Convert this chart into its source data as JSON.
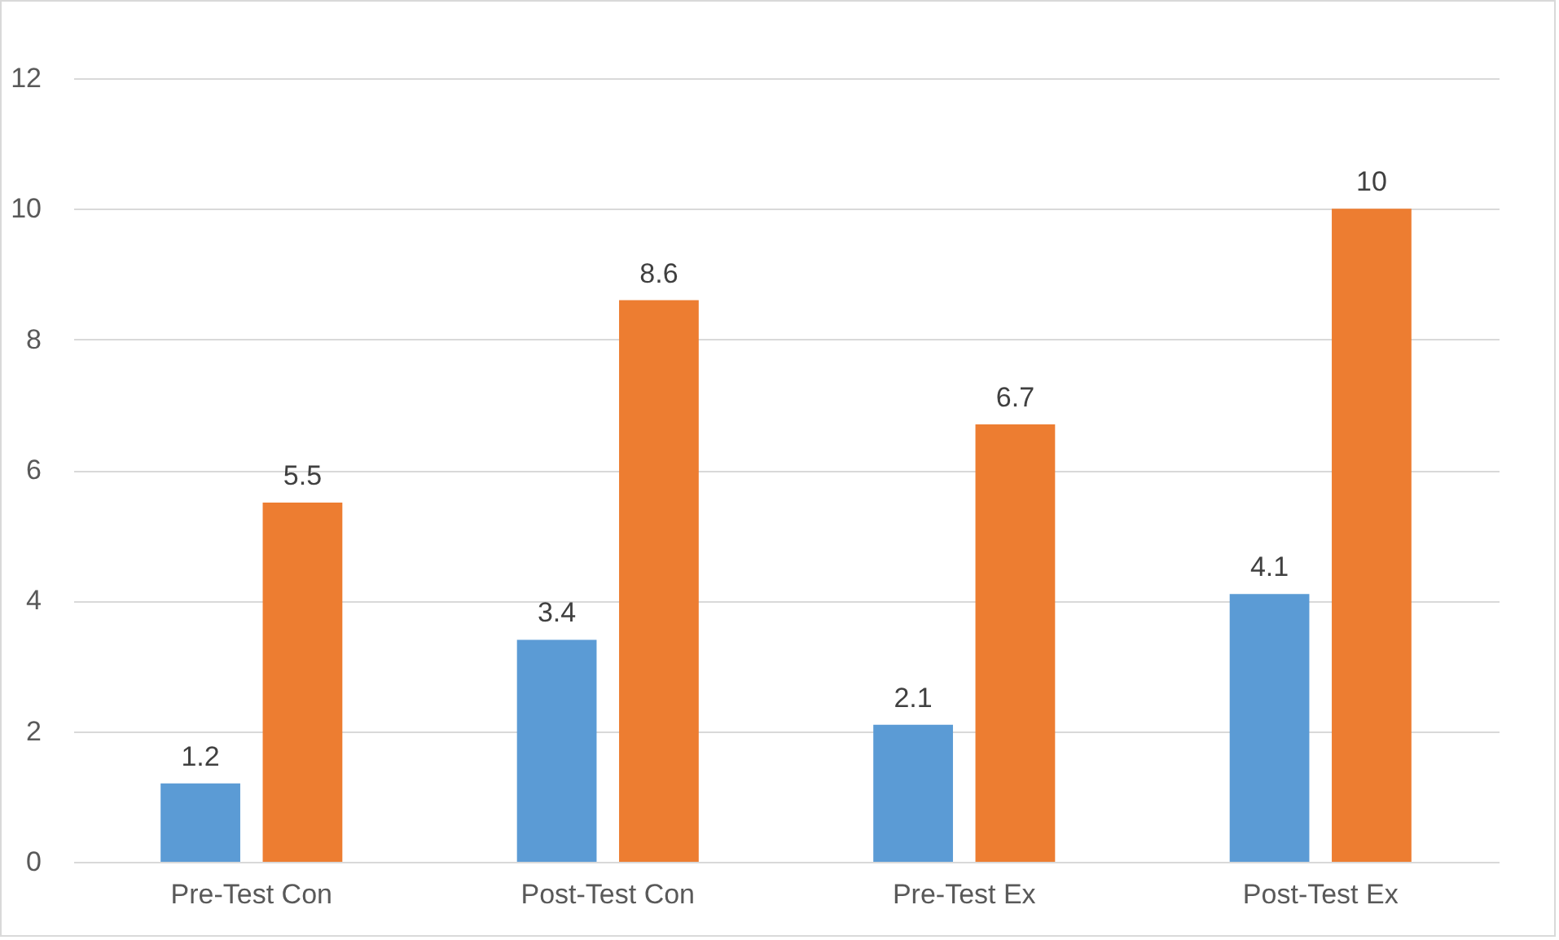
{
  "chart_data": {
    "type": "bar",
    "categories": [
      "Pre-Test Con",
      "Post-Test Con",
      "Pre-Test Ex",
      "Post-Test Ex"
    ],
    "series": [
      {
        "color": "#5b9bd5",
        "values": [
          1.2,
          3.4,
          2.1,
          4.1
        ]
      },
      {
        "color": "#ed7d31",
        "values": [
          5.5,
          8.6,
          6.7,
          10
        ]
      }
    ],
    "ylim": [
      0,
      12
    ],
    "yticks": [
      0,
      2,
      4,
      6,
      8,
      10,
      12
    ],
    "grid": "y",
    "data_labels": true
  }
}
